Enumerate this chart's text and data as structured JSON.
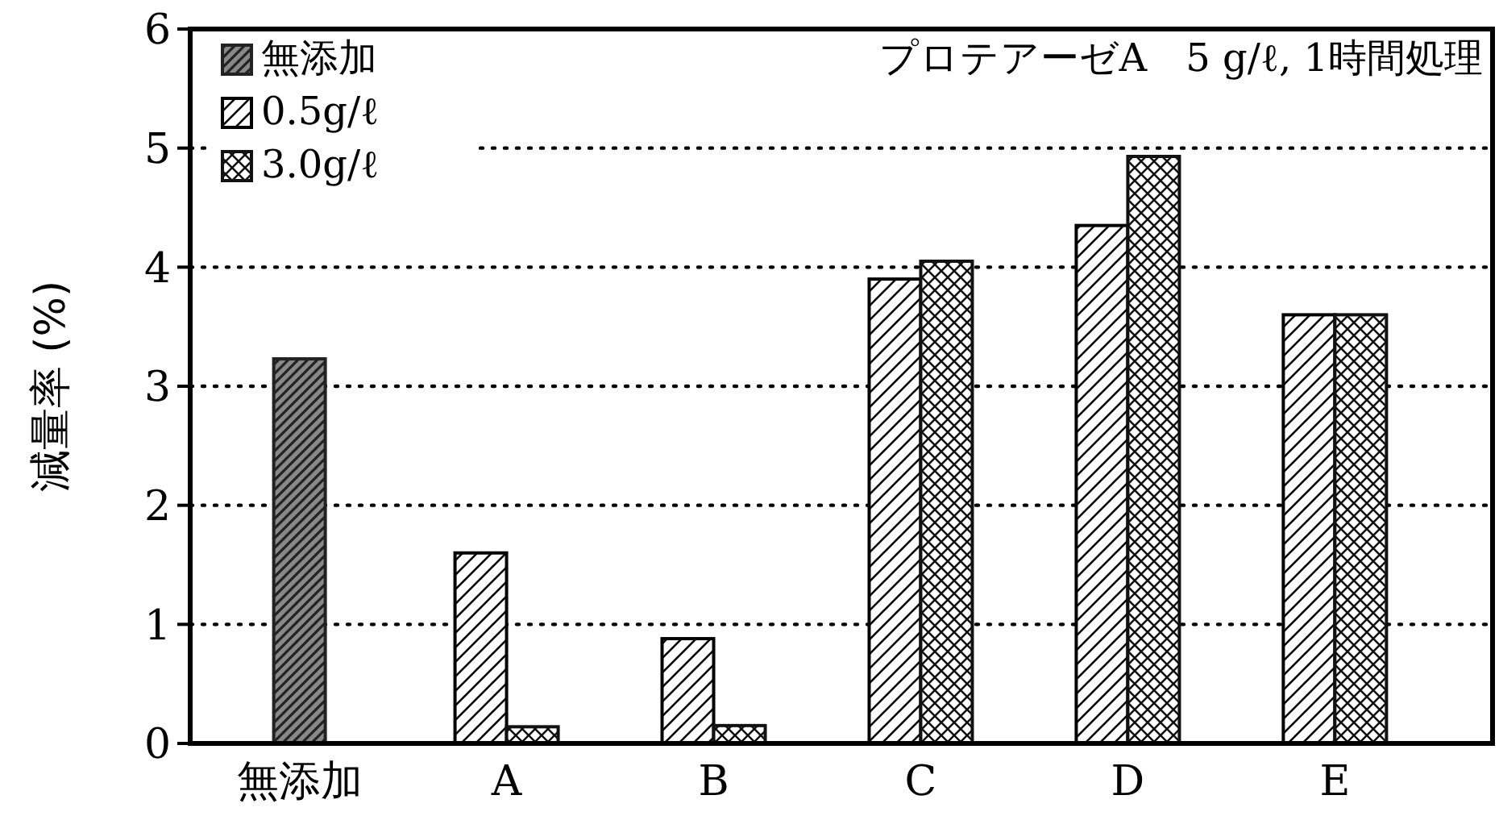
{
  "chart_data": {
    "type": "bar",
    "ylabel": "減量率 (%)",
    "categories": [
      "無添加",
      "A",
      "B",
      "C",
      "D",
      "E"
    ],
    "series": [
      {
        "name": "無添加",
        "color": "#222222",
        "values": [
          3.23,
          null,
          null,
          null,
          null,
          null
        ]
      },
      {
        "name": "0.5g/ℓ",
        "color": "#000000",
        "values": [
          null,
          1.6,
          0.88,
          3.9,
          4.35,
          3.6
        ]
      },
      {
        "name": "3.0g/ℓ",
        "color": "#111111",
        "values": [
          null,
          0.14,
          0.15,
          4.05,
          4.93,
          3.6
        ]
      }
    ],
    "ylim": [
      0,
      6
    ],
    "yticks": [
      0,
      1,
      2,
      3,
      4,
      5,
      6
    ],
    "grid": "y",
    "line_style": "dotted",
    "legend": "top left",
    "annotations": [
      "プロテアーゼA　5 g/ℓ, 1時間処理"
    ]
  }
}
